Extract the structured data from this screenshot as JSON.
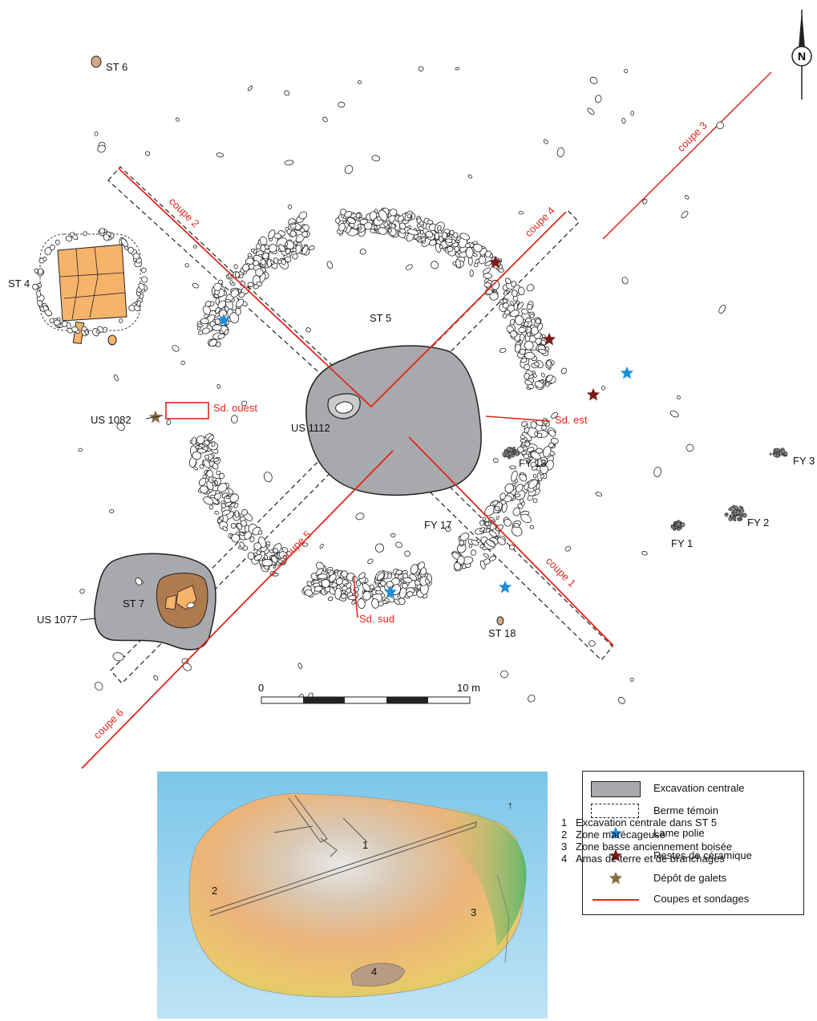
{
  "map": {
    "structures": {
      "st6": "ST 6",
      "st4": "ST 4",
      "st5": "ST 5",
      "st7": "ST 7",
      "st18": "ST 18",
      "us1082": "US 1082",
      "us1112": "US 1112",
      "us1077": "US 1077",
      "fy13": "FY 13",
      "fy17": "FY 17",
      "fy1": "FY 1",
      "fy2": "FY 2",
      "fy3": "FY 3"
    },
    "sections": {
      "coupe1": "coupe 1",
      "coupe2": "coupe 2",
      "coupe3": "coupe 3",
      "coupe4": "coupe 4",
      "coupe5": "coupe 5",
      "coupe6": "coupe 6",
      "sd_ouest": "Sd. ouest",
      "sd_est": "Sd. est",
      "sd_sud": "Sd. sud"
    },
    "scale_bar": {
      "start": "0",
      "end": "10 m"
    },
    "north": "N",
    "colors": {
      "excavation": "#a7a9ac",
      "stone_fill": "#ffffff",
      "orange_fill": "#f6b46b",
      "brown_fill": "#b07a4f",
      "section_red": "#e3261b",
      "lame_polie": "#1e8fd8",
      "ceramique": "#7b1a1a",
      "galets": "#8b6b3f"
    }
  },
  "terrain": {
    "labels": [
      "1",
      "2",
      "3",
      "4"
    ],
    "north_arrow": "↑"
  },
  "legend": {
    "items": [
      {
        "label": "Excavation centrale",
        "symbol": "grey-box"
      },
      {
        "label": "Berme témoin",
        "symbol": "dashed-box"
      },
      {
        "label": "Lame polie",
        "symbol": "blue-star"
      },
      {
        "label": "Restes de céramique",
        "symbol": "red-star"
      },
      {
        "label": "Dépôt de galets",
        "symbol": "brown-star"
      },
      {
        "label": "Coupes et sondages",
        "symbol": "red-line"
      }
    ]
  },
  "zones": [
    {
      "num": "1",
      "label": "Excavation centrale dans ST 5"
    },
    {
      "num": "2",
      "label": "Zone marécageuse"
    },
    {
      "num": "3",
      "label": "Zone basse anciennement boisée"
    },
    {
      "num": "4",
      "label": "Amas de terre et de branchages"
    }
  ]
}
